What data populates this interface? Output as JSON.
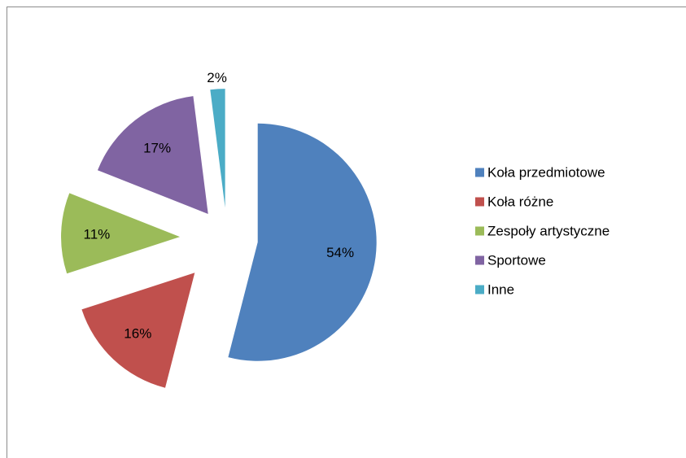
{
  "chart_data": {
    "type": "pie",
    "exploded": true,
    "legend_position": "right",
    "slices": [
      {
        "label": "Koła przedmiotowe",
        "value": 54,
        "value_label": "54%",
        "color": "#4F81BD"
      },
      {
        "label": "Koła różne",
        "value": 16,
        "value_label": "16%",
        "color": "#C0504D"
      },
      {
        "label": "Zespoły artystyczne",
        "value": 11,
        "value_label": "11%",
        "color": "#9BBB59"
      },
      {
        "label": "Sportowe",
        "value": 17,
        "value_label": "17%",
        "color": "#8064A2"
      },
      {
        "label": "Inne",
        "value": 2,
        "value_label": "2%",
        "color": "#4BACC6"
      }
    ]
  }
}
